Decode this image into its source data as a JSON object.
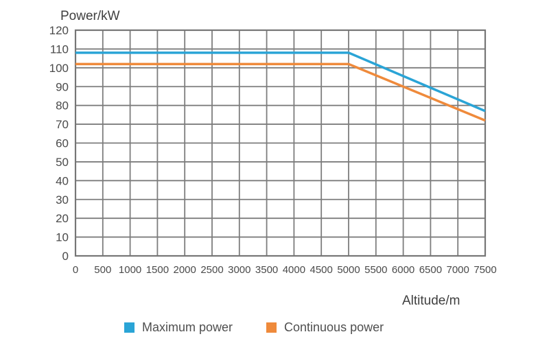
{
  "chart_data": {
    "type": "line",
    "title": "",
    "ylabel": "Power/kW",
    "xlabel": "Altitude/m",
    "xlim": [
      0,
      7500
    ],
    "ylim": [
      0,
      120
    ],
    "x_ticks": [
      0,
      500,
      1000,
      1500,
      2000,
      2500,
      3000,
      3500,
      4000,
      4500,
      5000,
      5500,
      6000,
      6500,
      7000,
      7500
    ],
    "y_ticks": [
      0,
      10,
      20,
      30,
      40,
      50,
      60,
      70,
      80,
      90,
      100,
      110,
      120
    ],
    "grid": true,
    "legend_position": "bottom",
    "series": [
      {
        "name": "Maximum power",
        "color": "#2AA4D6",
        "points": [
          [
            0,
            108
          ],
          [
            5000,
            108
          ],
          [
            7500,
            77
          ]
        ]
      },
      {
        "name": "Continuous power",
        "color": "#EF8A3B",
        "points": [
          [
            0,
            102
          ],
          [
            5000,
            102
          ],
          [
            7500,
            72
          ]
        ]
      }
    ]
  },
  "colors": {
    "gridline": "#7d7d7d",
    "frame": "#767676",
    "tick_text": "#4a4a4a",
    "axis_title_text": "#3f3f3f"
  }
}
